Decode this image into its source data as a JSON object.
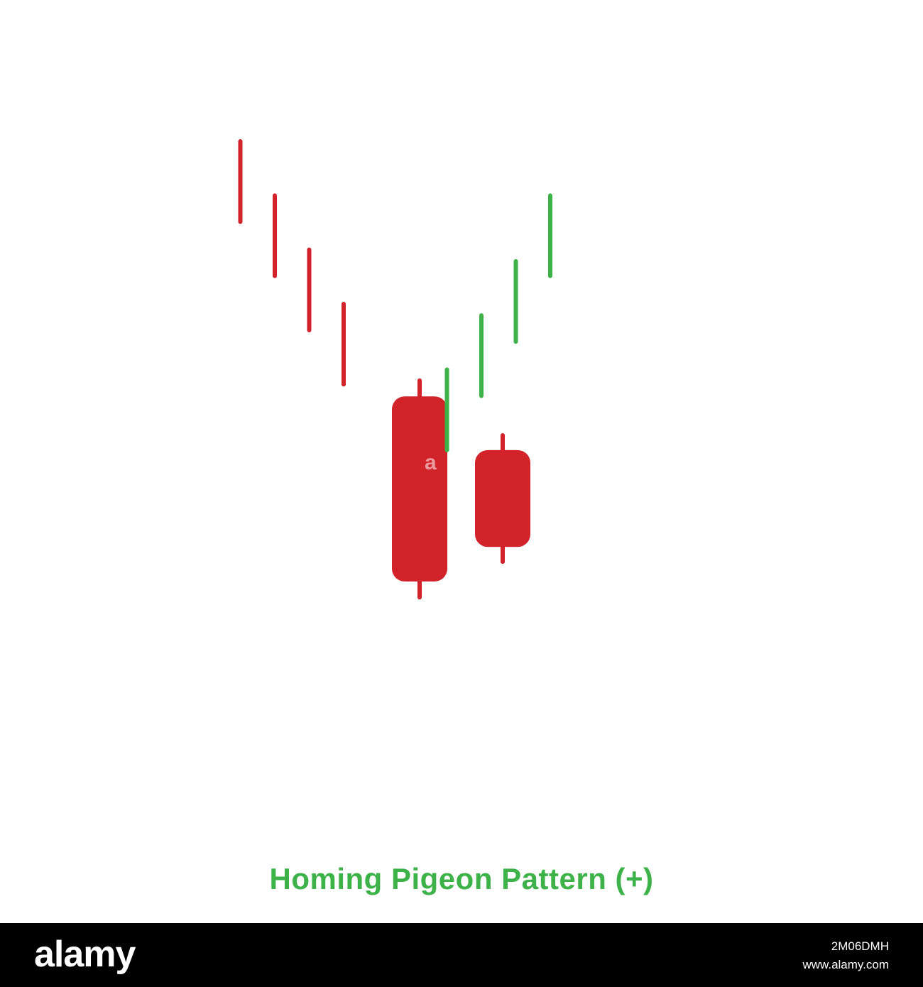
{
  "title": "Homing Pigeon Pattern (+)",
  "watermark_text": "a",
  "footer": {
    "logo": "alamy",
    "image_code": "2M06DMH",
    "url": "www.alamy.com"
  },
  "colors": {
    "bearish": "#d2232a",
    "bullish": "#3db249",
    "title": "#3db249",
    "footer_bg": "#000000"
  },
  "chart_data": {
    "type": "candlestick",
    "yrange": [
      0,
      100
    ],
    "candles": [
      {
        "index": 1,
        "color": "bearish",
        "kind": "line",
        "high": 100,
        "low": 85.3
      },
      {
        "index": 2,
        "color": "bearish",
        "kind": "line",
        "high": 90.1,
        "low": 75.4
      },
      {
        "index": 3,
        "color": "bearish",
        "kind": "line",
        "high": 80.2,
        "low": 65.5
      },
      {
        "index": 4,
        "color": "bearish",
        "kind": "line",
        "high": 70.3,
        "low": 55.6
      },
      {
        "index": 5,
        "color": "bearish",
        "kind": "candle",
        "high": 56.3,
        "open": 53.4,
        "close": 19.6,
        "low": 16.7
      },
      {
        "index": 6,
        "color": "bearish",
        "kind": "candle",
        "high": 46.3,
        "open": 43.6,
        "close": 25.9,
        "low": 23.2
      },
      {
        "index": 7,
        "color": "bullish",
        "kind": "line",
        "high": 58.3,
        "low": 43.6
      },
      {
        "index": 8,
        "color": "bullish",
        "kind": "line",
        "high": 68.2,
        "low": 53.5
      },
      {
        "index": 9,
        "color": "bullish",
        "kind": "line",
        "high": 78.1,
        "low": 63.4
      },
      {
        "index": 10,
        "color": "bullish",
        "kind": "line",
        "high": 90.1,
        "low": 75.4
      }
    ]
  }
}
